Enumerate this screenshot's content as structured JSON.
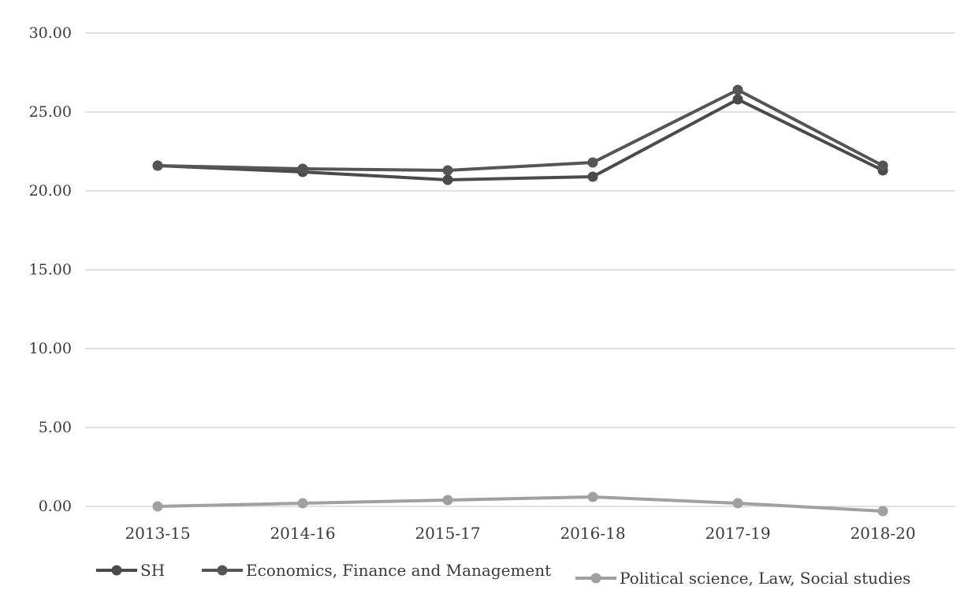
{
  "chart_data": {
    "type": "line",
    "categories": [
      "2013-15",
      "2014-16",
      "2015-17",
      "2016-18",
      "2017-19",
      "2018-20"
    ],
    "series": [
      {
        "name": "SH",
        "values": [
          21.6,
          21.2,
          20.7,
          20.9,
          25.8,
          21.3
        ],
        "color": "#4a4a4a"
      },
      {
        "name": "Economics, Finance and Management",
        "values": [
          21.6,
          21.4,
          21.3,
          21.8,
          26.4,
          21.6
        ],
        "color": "#555555"
      },
      {
        "name": "Political science, Law, Social studies",
        "values": [
          0.0,
          0.2,
          0.4,
          0.6,
          0.2,
          -0.3
        ],
        "color": "#a0a0a0"
      }
    ],
    "ylim": [
      0,
      30
    ],
    "yticks": [
      "0.00",
      "5.00",
      "10.00",
      "15.00",
      "20.00",
      "25.00",
      "30.00"
    ],
    "title": "",
    "xlabel": "",
    "ylabel": "",
    "grid": true,
    "legend_position": "bottom"
  }
}
